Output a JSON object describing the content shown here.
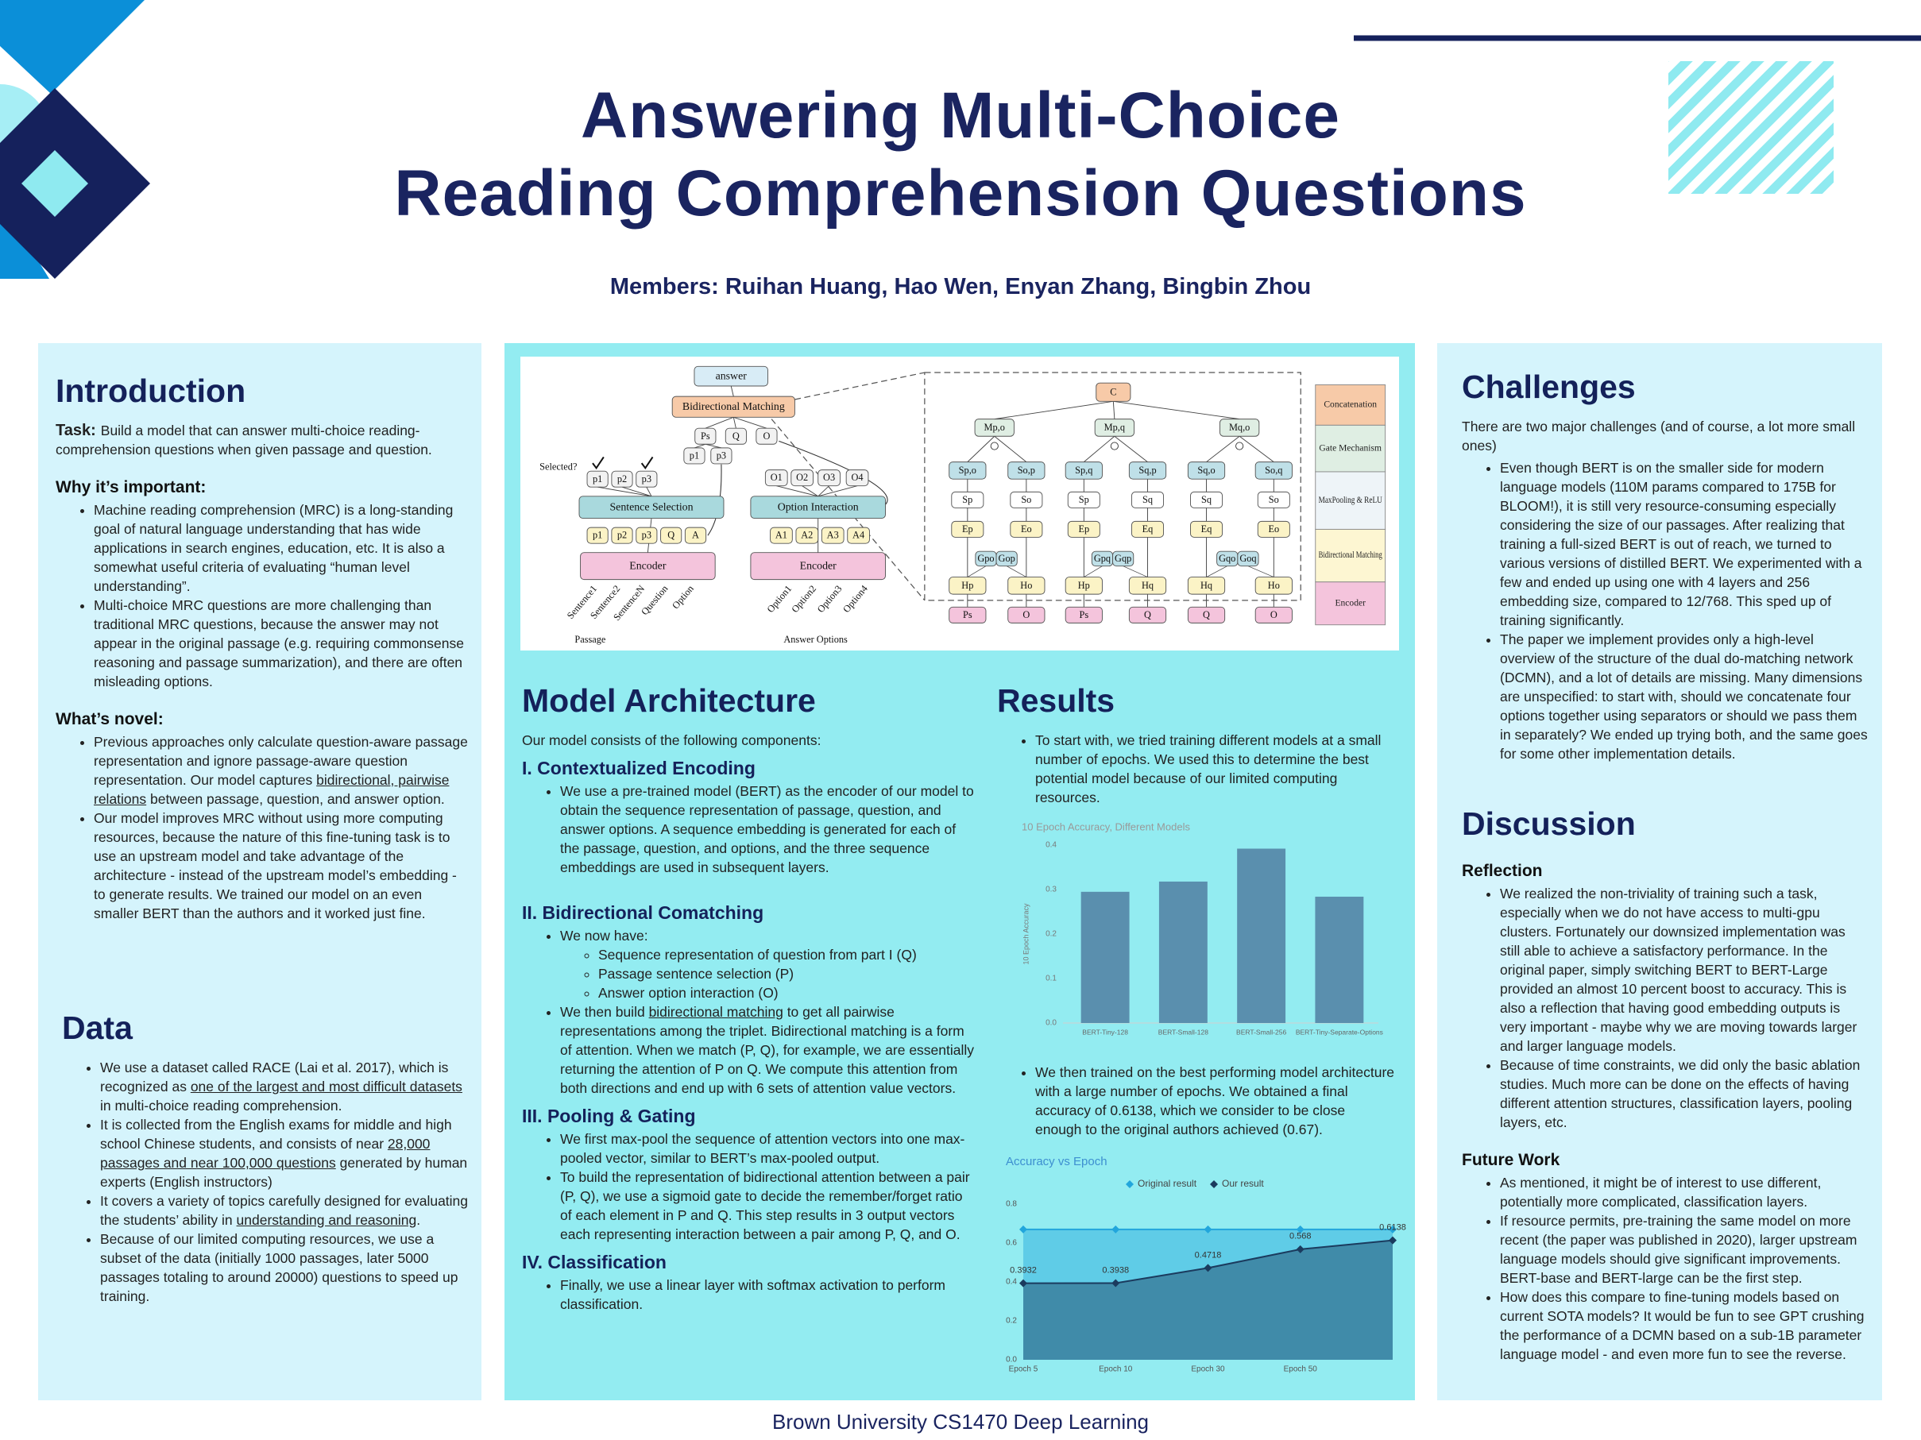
{
  "header": {
    "title_lines": [
      "Answering Multi-Choice",
      "Reading Comprehension Questions"
    ],
    "members": "Members: Ruihan Huang, Hao Wen, Enyan Zhang, Bingbin Zhou"
  },
  "footer": "Brown University CS1470 Deep Learning",
  "introduction": {
    "heading": "Introduction",
    "task_label": "Task:",
    "task": "Build a model that can answer multi-choice reading-comprehension questions when given passage and question.",
    "sections": [
      {
        "subheading": "Why it’s important:",
        "bullets": [
          "Machine reading comprehension (MRC) is a long-standing goal of natural language understanding that has wide applications in search engines, education, etc. It is also a somewhat useful criteria of evaluating “human level understanding”.",
          "Multi-choice MRC questions are more challenging than traditional MRC questions, because the answer may not appear in the original passage (e.g.  requiring commonsense reasoning and passage summarization), and there are often misleading options."
        ]
      },
      {
        "subheading": "What’s novel:",
        "bullets": [
          [
            "Previous approaches only calculate question-aware passage representation and ignore passage-aware question representation. Our model captures ",
            {
              "text": "bidirectional, pairwise relations",
              "underline": true
            },
            " between passage, question, and answer option."
          ],
          "Our model improves MRC without using more computing resources, because the nature of this fine-tuning task is to use an upstream model and take advantage of the architecture - instead of the upstream model’s embedding - to generate results. We trained our model on an even smaller BERT than the authors and it worked just fine."
        ]
      }
    ]
  },
  "data_section": {
    "heading": "Data",
    "bullets": [
      [
        "We use a dataset called RACE (Lai et al. 2017), which is recognized as ",
        {
          "text": "one of the largest and most difficult datasets ",
          "underline": true
        },
        "in multi-choice reading comprehension."
      ],
      [
        "It is collected from the English exams for middle and high school Chinese students, and consists of near ",
        {
          "text": "28,000 passages and near 100,000 questions",
          "underline": true
        },
        " generated by human experts (English instructors)"
      ],
      [
        "It covers a variety of topics carefully designed for evaluating the students’ ability in ",
        {
          "text": "understanding and reasoning",
          "underline": true
        },
        "."
      ],
      "Because of our limited computing resources, we use a subset of the data (initially 1000 passages, later 5000 passages totaling to around 20000) questions to speed up training."
    ]
  },
  "model_architecture": {
    "heading": "Model Architecture",
    "text": "Our model consists of the following components:",
    "sections": [
      {
        "subheading": "I.  Contextualized Encoding",
        "bullets": [
          "We use a pre-trained model (BERT) as the encoder of our model to obtain the sequence representation of passage, question, and answer options. A sequence embedding is generated for each of the passage, question, and options, and the three sequence embeddings are used in subsequent layers."
        ]
      },
      {
        "subheading": "II. Bidirectional Comatching",
        "bullets": [
          {
            "text": "We now have:",
            "sub": [
              "Sequence representation of question from part I (Q)",
              "Passage sentence selection (P)",
              "Answer option interaction (O)"
            ]
          },
          [
            "We then build ",
            {
              "text": "bidirectional matching",
              "underline": true
            },
            " to get all pairwise representations among the triplet. Bidirectional matching is a form of attention. When we match (P, Q), for example, we are essentially returning the attention of P on Q. We compute this attention from both directions and end up with 6 sets of attention value vectors."
          ]
        ]
      },
      {
        "subheading": "III. Pooling & Gating",
        "bullets": [
          "We first max-pool the sequence of attention vectors into one max-pooled vector, similar to BERT’s max-pooled output.",
          "To build the representation of bidirectional attention between a pair (P, Q), we use a sigmoid gate to decide the remember/forget ratio of each element in P and Q. This step results in 3 output vectors each representing interaction between a pair among P, Q, and O."
        ]
      },
      {
        "subheading": "IV. Classification",
        "bullets": [
          "Finally, we use a linear layer with softmax activation to perform classification."
        ]
      }
    ]
  },
  "results": {
    "heading": "Results",
    "bullets": [
      "To start with, we tried training different models at a small number of epochs. We used this to determine the best potential model because of our limited computing resources.",
      "We then trained on the best performing model architecture with a large number of epochs. We obtained a final accuracy of 0.6138, which we consider to be close enough to the original authors achieved (0.67)."
    ]
  },
  "challenges": {
    "heading": "Challenges",
    "text": "There are two major challenges (and of course, a lot more small ones)",
    "bullets": [
      "Even though BERT is on the smaller side for modern language models (110M params compared to 175B for BLOOM!), it is still very resource-consuming especially considering the size of our passages. After realizing that training a full-sized BERT is out of reach, we turned to various versions of distilled BERT. We experimented with a few and ended up using one with 4 layers and 256 embedding size, compared to 12/768. This sped up of training significantly.",
      "The paper we implement provides only a high-level overview of the structure of the dual do-matching network (DCMN), and a lot of details are missing. Many dimensions are unspecified: to start with, should we concatenate four options together using separators or should we pass them in separately? We ended up trying both, and the same goes for some other implementation details."
    ]
  },
  "discussion": {
    "heading": "Discussion",
    "sections": [
      {
        "subheading": "Reflection",
        "bullets": [
          "We realized the non-triviality of training such a task, especially when we do not have access to multi-gpu clusters. Fortunately our downsized implementation was still able to achieve a satisfactory performance. In the original paper, simply switching BERT to BERT-Large provided an almost 10 percent boost to accuracy. This is also a reflection that having good embedding outputs is very important - maybe why we are moving towards larger and larger language models.",
          "Because of time constraints, we did only the basic ablation studies. Much more can be done on the effects of having different attention structures, classification layers, pooling layers, etc."
        ]
      },
      {
        "subheading": "Future Work",
        "bullets": [
          "As mentioned, it might be of interest to use different, potentially more complicated, classification layers.",
          "If resource permits, pre-training the same model on more recent (the paper was published in 2020), larger upstream language models should give significant improvements. BERT-base and BERT-large can be the first step.",
          "How does this compare to fine-tuning models based on current SOTA models? It would be fun to see GPT crushing the performance of a DCMN based on a sub-1B parameter language model - and even more fun to see the reverse."
        ]
      }
    ]
  },
  "diagram": {
    "nodes": [
      "answer",
      "Bidirectional Matching",
      "Ps",
      "Q",
      "O",
      "p1",
      "p3",
      "Selected?",
      "p1",
      "p2",
      "p3",
      "Sentence Selection",
      "p1",
      "p2",
      "p3",
      "Q",
      "A",
      "Encoder",
      "Sentence1",
      "Sentence2",
      "SentenceN",
      "Question",
      "Option",
      "Passage",
      "O1",
      "O2",
      "O3",
      "O4",
      "Option Interaction",
      "A1",
      "A2",
      "A3",
      "A4",
      "Encoder",
      "Option1",
      "Option2",
      "Option3",
      "Option4",
      "Answer Options",
      "C",
      "Mp,o",
      "Mp,q",
      "Mq,o",
      "Sp,o",
      "So,p",
      "Sp,q",
      "Sq,p",
      "Sq,o",
      "So,q",
      "Sp",
      "So",
      "Sp",
      "Sq",
      "Sq",
      "So",
      "Ep",
      "Eo",
      "Ep",
      "Eq",
      "Eq",
      "Eo",
      "Gpo",
      "Gop",
      "Gpq",
      "Gqp",
      "Gqo",
      "Goq",
      "Hp",
      "Ho",
      "Hp",
      "Hq",
      "Hq",
      "Ho",
      "Ps",
      "O",
      "Ps",
      "Q",
      "Q",
      "O"
    ],
    "legend": [
      "Concatenation",
      "Gate Mechanism",
      "MaxPooling & ReLU",
      "Bidirectional Matching",
      "Encoder"
    ]
  },
  "chart_data": [
    {
      "type": "bar",
      "title": "10 Epoch Accuracy, Different Models",
      "ylabel": "10 Epoch Accuracy",
      "categories": [
        "BERT-Tiny-128",
        "BERT-Small-128",
        "BERT-Small-256",
        "BERT-Tiny-Separate-Options"
      ],
      "values": [
        0.295,
        0.318,
        0.392,
        0.284
      ],
      "color": "#5a8fae",
      "ylim": [
        0,
        0.4
      ],
      "yticks": [
        {
          "value": 0,
          "label": "0.0"
        },
        0.1,
        0.2,
        0.3,
        0.4
      ],
      "grid": false
    },
    {
      "type": "line",
      "title": "Accuracy vs Epoch",
      "categories": [
        "Epoch 5",
        "Epoch 10",
        "Epoch 30",
        "Epoch 50",
        null
      ],
      "series": [
        {
          "name": "Original result",
          "color": "#22a6dc",
          "values": [
            0.67,
            0.67,
            0.67,
            0.67,
            0.67
          ]
        },
        {
          "name": "Our result",
          "color": "#1b3b5e",
          "values": [
            0.3932,
            0.3938,
            0.4718,
            0.568,
            0.6138
          ],
          "data_labels": true
        }
      ],
      "ylim": [
        0,
        0.8
      ],
      "yticks": [
        {
          "value": 0,
          "label": "0.0"
        },
        0.2,
        0.4,
        0.6,
        0.8
      ],
      "area": true,
      "grid": false,
      "legend": "top"
    }
  ]
}
